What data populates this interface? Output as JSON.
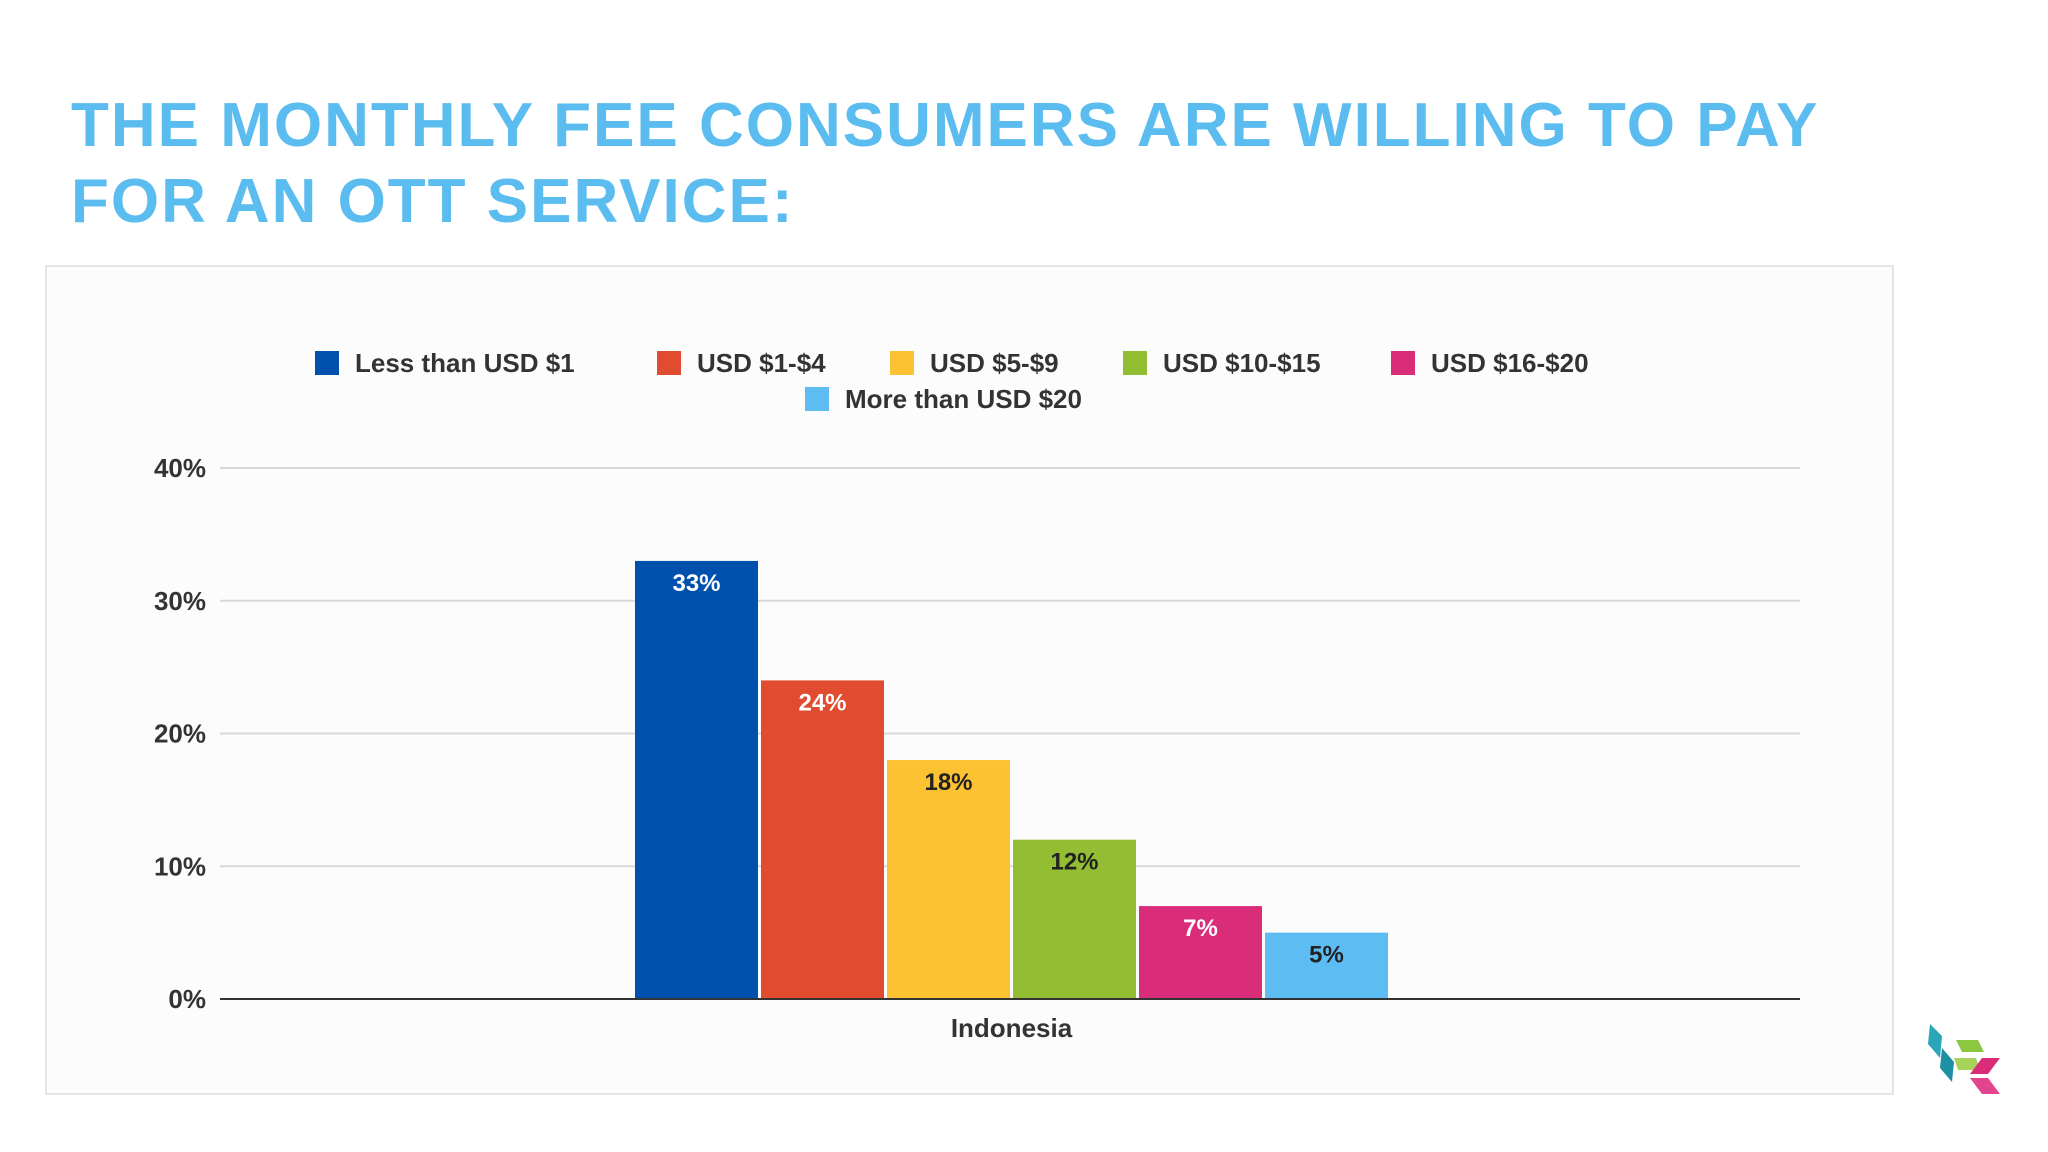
{
  "slide": {
    "title": "THE MONTHLY FEE CONSUMERS ARE WILLING TO PAY FOR AN OTT SERVICE:"
  },
  "chart_data": {
    "type": "bar",
    "title": "",
    "xlabel": "",
    "ylabel": "",
    "categories": [
      "Indonesia"
    ],
    "series": [
      {
        "name": "Less than USD $1",
        "values": [
          33
        ],
        "color": "#0050ad",
        "label": "33%",
        "label_color": "#ffffff"
      },
      {
        "name": "USD $1-$4",
        "values": [
          24
        ],
        "color": "#e14c30",
        "label": "24%",
        "label_color": "#ffffff"
      },
      {
        "name": "USD $5-$9",
        "values": [
          18
        ],
        "color": "#fcc232",
        "label": "18%",
        "label_color": "#222222"
      },
      {
        "name": "USD $10-$15",
        "values": [
          12
        ],
        "color": "#93be33",
        "label": "12%",
        "label_color": "#222222"
      },
      {
        "name": "USD $16-$20",
        "values": [
          7
        ],
        "color": "#d92d7a",
        "label": "7%",
        "label_color": "#ffffff"
      },
      {
        "name": "More than USD $20",
        "values": [
          5
        ],
        "color": "#5dbdf2",
        "label": "5%",
        "label_color": "#222222"
      }
    ],
    "y_ticks": [
      "0%",
      "10%",
      "20%",
      "30%",
      "40%"
    ],
    "y_tick_values": [
      0,
      10,
      20,
      30,
      40
    ],
    "ylim": [
      0,
      40
    ],
    "grid": true,
    "legend": "top-center",
    "colors": {
      "grid": "#d9d7dd",
      "axis": "#333333",
      "text": "#333333"
    }
  },
  "logo": {
    "icon": "cube-logo-icon",
    "colors": [
      "#2aa6b8",
      "#8dc63f",
      "#d92d7a"
    ]
  }
}
